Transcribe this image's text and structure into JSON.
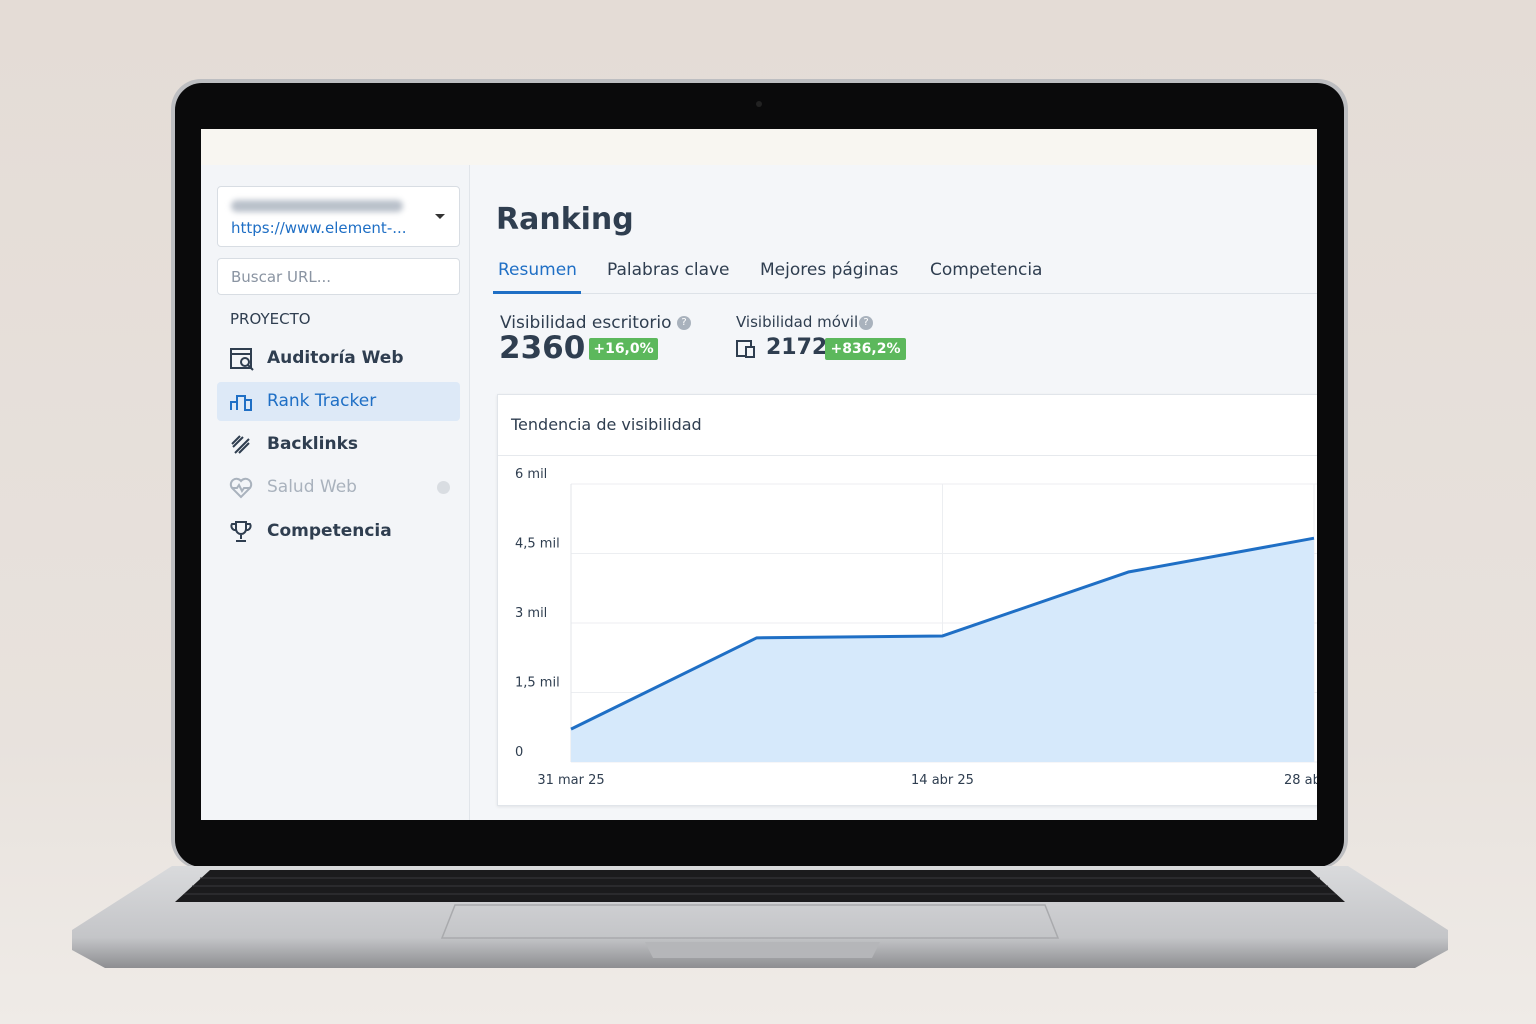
{
  "sidebar": {
    "project_url": "https://www.element-...",
    "search_placeholder": "Buscar URL...",
    "section": "PROYECTO",
    "nav": [
      "Auditoría Web",
      "Rank Tracker",
      "Backlinks",
      "Salud Web",
      "Competencia"
    ]
  },
  "header": {
    "title": "Ranking",
    "tabs": [
      "Resumen",
      "Palabras clave",
      "Mejores páginas",
      "Competencia"
    ]
  },
  "metrics": [
    {
      "label": "Visibilidad escritorio",
      "value": 2360,
      "change": "+16,0%"
    },
    {
      "label": "Visibilidad móvil",
      "value": 2172,
      "change": "+836,2%"
    }
  ],
  "chart_data": {
    "type": "line",
    "title": "Tendencia de visibilidad",
    "x": [
      "31 mar 25",
      null,
      "14 abr 25",
      null,
      "28 ab"
    ],
    "series": [
      {
        "name": "Visibilidad",
        "color": "#1f6fc5",
        "values": [
          710,
          2680,
          2720,
          4100,
          4830
        ]
      }
    ],
    "ylim": [
      0,
      6000
    ],
    "yticks": [
      0,
      {
        "value": 1500,
        "label": "1,5 mil"
      },
      {
        "value": 3000,
        "label": "3 mil"
      },
      {
        "value": 4500,
        "label": "4,5 mil"
      },
      {
        "value": 6000,
        "label": "6 mil"
      }
    ],
    "grid": true,
    "area_color": "#d6e9fb"
  }
}
